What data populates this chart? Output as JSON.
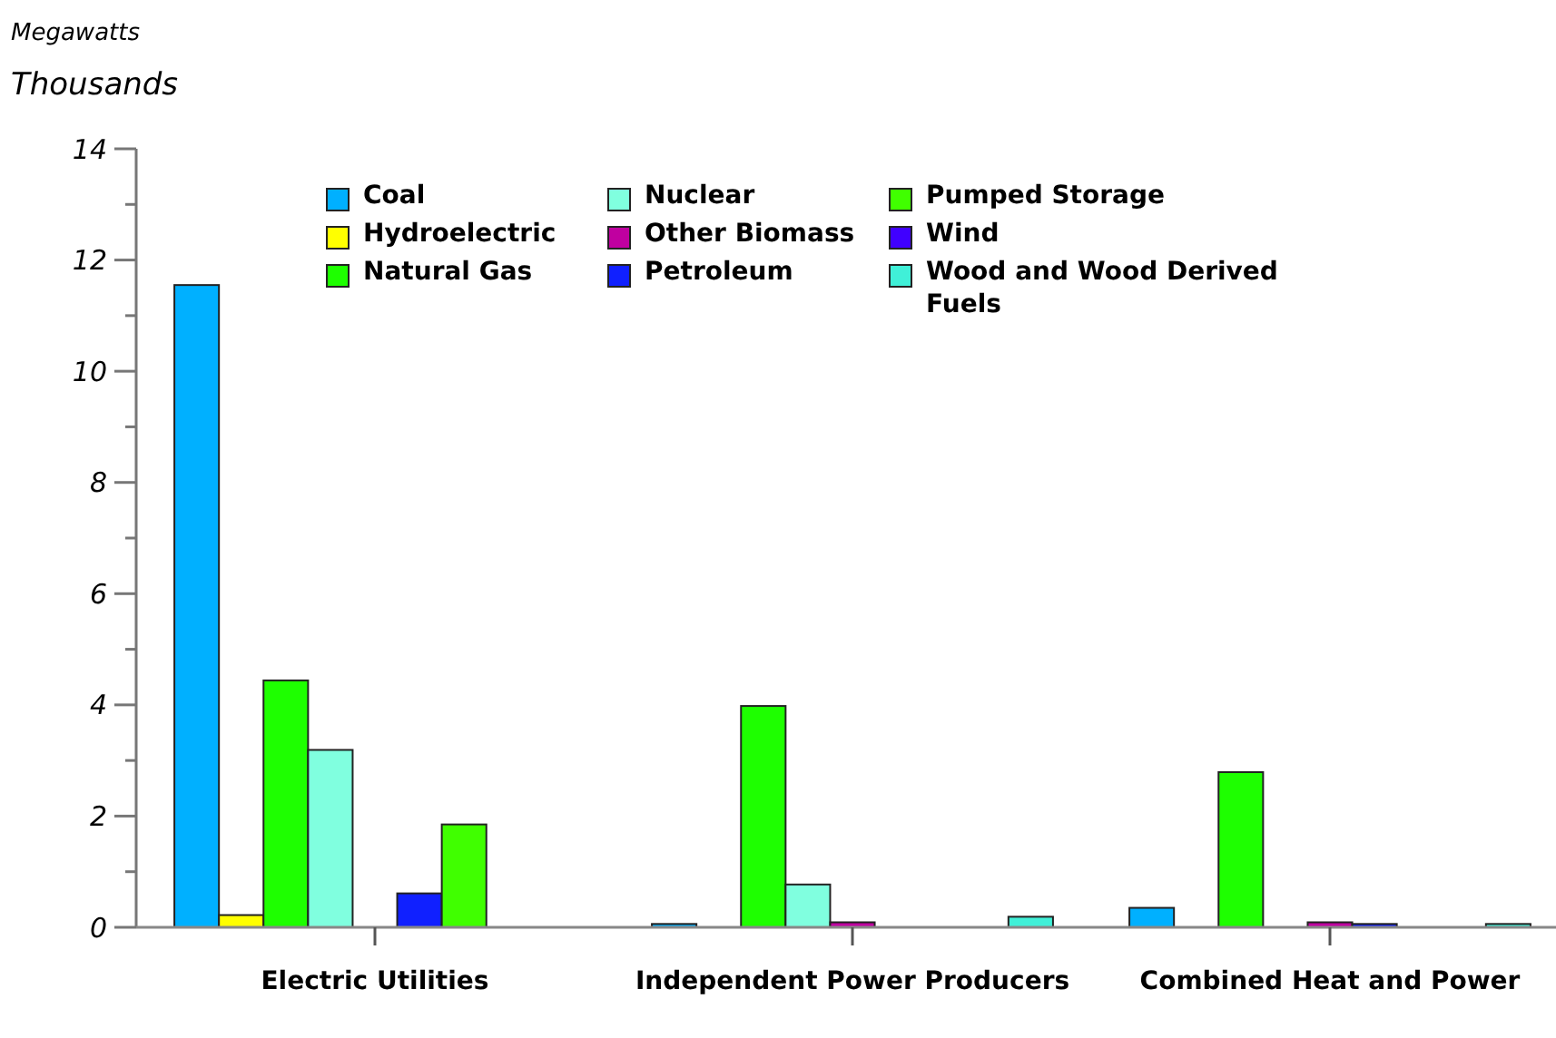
{
  "chart_data": {
    "type": "bar",
    "ylabel": "Megawatts",
    "annotations": [
      "Thousands"
    ],
    "categories": [
      "Electric Utilities",
      "Independent Power Producers",
      "Combined Heat and Power"
    ],
    "series": [
      {
        "name": "Coal",
        "color": "#00b0ff",
        "values": [
          11.55,
          0.06,
          0.35
        ]
      },
      {
        "name": "Hydroelectric",
        "color": "#ffff00",
        "values": [
          0.22,
          null,
          0
        ]
      },
      {
        "name": "Natural Gas",
        "color": "#1eff00",
        "values": [
          4.44,
          3.98,
          2.79
        ]
      },
      {
        "name": "Nuclear",
        "color": "#80ffdf",
        "values": [
          3.19,
          0.77,
          0
        ]
      },
      {
        "name": "Other Biomass",
        "color": "#c000a0",
        "values": [
          0,
          0.09,
          0.09
        ]
      },
      {
        "name": "Petroleum",
        "color": "#1020ff",
        "values": [
          0.61,
          0,
          0.06
        ]
      },
      {
        "name": "Pumped Storage",
        "color": "#40ff00",
        "values": [
          1.85,
          0,
          0
        ]
      },
      {
        "name": "Wind",
        "color": "#4000ff",
        "values": [
          0,
          0,
          0
        ]
      },
      {
        "name": "Wood and Wood Derived Fuels",
        "color": "#40f0d8",
        "values": [
          0,
          0.19,
          0.06
        ]
      }
    ],
    "ylim": [
      0,
      14
    ],
    "yticks": [
      0,
      {
        "value": 1,
        "label": null
      },
      2,
      {
        "value": 3,
        "label": null
      },
      4,
      {
        "value": 5,
        "label": null
      },
      6,
      {
        "value": 7,
        "label": null
      },
      8,
      {
        "value": 9,
        "label": null
      },
      10,
      {
        "value": 11,
        "label": null
      },
      12,
      {
        "value": 13,
        "label": null
      },
      14
    ],
    "grid": false,
    "legend": "top"
  }
}
